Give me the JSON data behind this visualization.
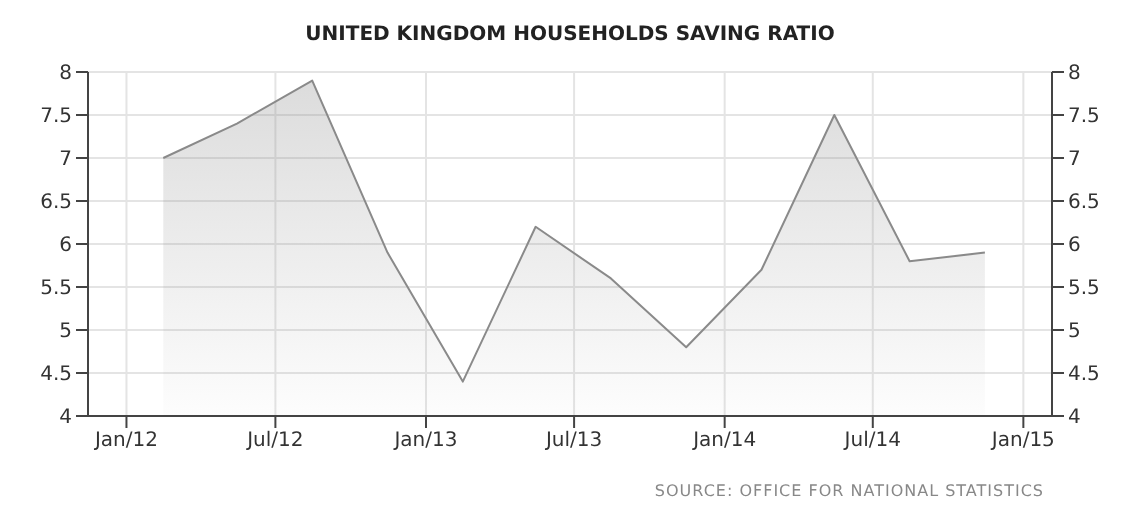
{
  "chart_data": {
    "type": "area",
    "title": "UNITED KINGDOM HOUSEHOLDS SAVING RATIO",
    "x": [
      "2012-02-15",
      "2012-05-15",
      "2012-08-15",
      "2012-11-15",
      "2013-02-15",
      "2013-05-15",
      "2013-08-15",
      "2013-11-15",
      "2014-02-15",
      "2014-05-15",
      "2014-08-15",
      "2014-11-15"
    ],
    "series": [
      {
        "color": "#8a8a8a",
        "values": [
          7.0,
          7.4,
          7.9,
          5.9,
          4.4,
          6.2,
          5.6,
          4.8,
          5.7,
          7.5,
          5.8,
          5.9
        ]
      }
    ],
    "xlim": [
      "2011-11-15",
      "2015-02-05"
    ],
    "xticks": [
      {
        "value": "2012-01-01",
        "label": "Jan/12"
      },
      {
        "value": "2012-07-01",
        "label": "Jul/12"
      },
      {
        "value": "2013-01-01",
        "label": "Jan/13"
      },
      {
        "value": "2013-07-01",
        "label": "Jul/13"
      },
      {
        "value": "2014-01-01",
        "label": "Jan/14"
      },
      {
        "value": "2014-07-01",
        "label": "Jul/14"
      },
      {
        "value": "2015-01-01",
        "label": "Jan/15"
      }
    ],
    "ylim": [
      4,
      8
    ],
    "yticks": [
      4,
      4.5,
      5,
      5.5,
      6,
      6.5,
      7,
      7.5,
      8
    ],
    "y2lim": [
      4,
      8
    ],
    "y2ticks": [
      4,
      4.5,
      5,
      5.5,
      6,
      6.5,
      7,
      7.5,
      8
    ],
    "grid": true,
    "marker": "none",
    "line_style": "solid",
    "annotations": [
      "SOURCE: OFFICE FOR NATIONAL STATISTICS"
    ]
  }
}
